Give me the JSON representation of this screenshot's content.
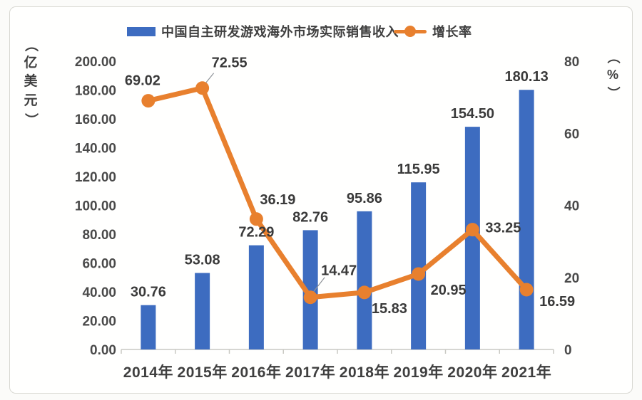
{
  "chart_data": {
    "type": "combo",
    "title": "",
    "categories": [
      "2014年",
      "2015年",
      "2016年",
      "2017年",
      "2018年",
      "2019年",
      "2020年",
      "2021年"
    ],
    "series": [
      {
        "name": "中国自主研发游戏海外市场实际销售收入",
        "type": "bar",
        "axis": "left",
        "color": "#3d6cc0",
        "values": [
          30.76,
          53.08,
          72.29,
          82.76,
          95.86,
          115.95,
          154.5,
          180.13
        ],
        "labels": [
          "30.76",
          "53.08",
          "72.29",
          "82.76",
          "95.86",
          "115.95",
          "154.50",
          "180.13"
        ]
      },
      {
        "name": "增长率",
        "type": "line",
        "axis": "right",
        "color": "#e8802e",
        "values": [
          69.02,
          72.55,
          36.19,
          14.47,
          15.83,
          20.95,
          33.25,
          16.59
        ],
        "labels": [
          "69.02",
          "72.55",
          "36.19",
          "14.47",
          "15.83",
          "20.95",
          "33.25",
          "16.59"
        ]
      }
    ],
    "left_axis": {
      "title": "（亿美元）",
      "min": 0,
      "max": 200,
      "step": 20,
      "ticks": [
        "0.00",
        "20.00",
        "40.00",
        "60.00",
        "80.00",
        "100.00",
        "120.00",
        "140.00",
        "160.00",
        "180.00",
        "200.00"
      ]
    },
    "right_axis": {
      "title": "（%）",
      "min": 0,
      "max": 80,
      "step": 20,
      "ticks": [
        "0",
        "20",
        "40",
        "60",
        "80"
      ]
    },
    "legend_position": "top",
    "grid": false,
    "axis_line_color": "#c9c9c3",
    "text_color": "#3f3f3f"
  }
}
